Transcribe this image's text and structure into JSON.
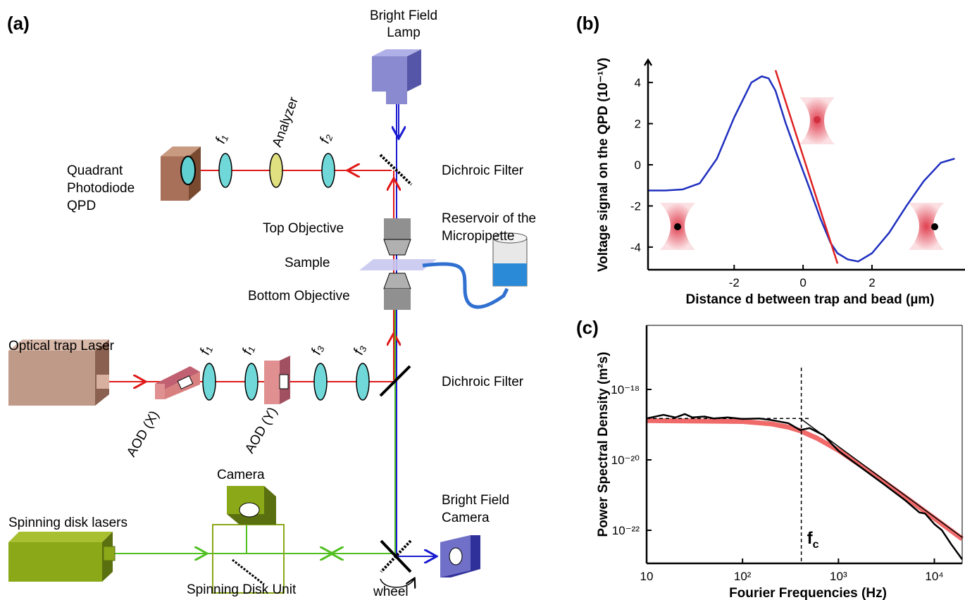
{
  "diagram": {
    "panel": "(a)",
    "lamp": [
      "Bright Field",
      "Lamp"
    ],
    "qpd": [
      "Quadrant",
      "Photodiode",
      "QPD"
    ],
    "f1_top": "f₁",
    "analyzer": "Analyzer",
    "f2": "f₂",
    "dichroic_top": "Dichroic Filter",
    "top_objective": "Top Objective",
    "reservoir": [
      "Reservoir of the",
      "Micropipette"
    ],
    "sample": "Sample",
    "bottom_objective": "Bottom Objective",
    "laser": "Optical trap Laser",
    "aod_x": "AOD (X)",
    "f1_a": "f₁",
    "f1_b": "f₁",
    "aod_y": "AOD (Y)",
    "f3_a": "f₃",
    "f3_b": "f₃",
    "dichroic_bottom": "Dichroic Filter",
    "camera": "Camera",
    "bf_camera": [
      "Bright Field",
      "Camera"
    ],
    "sd_lasers": "Spinning disk lasers",
    "sd_unit": "Spinning Disk Unit",
    "wheel": "wheel"
  },
  "chart_data": [
    {
      "type": "line",
      "label": "(b)",
      "x_label": "Distance d between trap and bead (µm)",
      "y_label": "Voltage signal on the QPD (10⁻¹V)",
      "xlim": [
        -4.5,
        4.7
      ],
      "ylim": [
        -5.1,
        5.1
      ],
      "xticks": [
        -2,
        0,
        2
      ],
      "yticks": [
        -4,
        -2,
        0,
        2,
        4
      ],
      "series": [
        {
          "color": "#1f2fbf",
          "x": [
            -4.5,
            -4,
            -3.5,
            -3,
            -2.5,
            -2,
            -1.5,
            -1.2,
            -1,
            -0.8,
            -0.5,
            -0.2,
            0,
            0.2,
            0.5,
            0.8,
            1,
            1.3,
            1.6,
            2,
            2.5,
            3,
            3.5,
            4,
            4.4
          ],
          "values": [
            -1.25,
            -1.25,
            -1.2,
            -0.9,
            0.3,
            2.3,
            4.0,
            4.3,
            4.2,
            3.6,
            2.0,
            0.6,
            -0.3,
            -1.2,
            -2.6,
            -3.8,
            -4.3,
            -4.6,
            -4.7,
            -4.3,
            -3.3,
            -2.0,
            -0.8,
            0.1,
            0.3
          ]
        },
        {
          "color": "#e02020",
          "x": [
            -0.8,
            1.0
          ],
          "values": [
            4.6,
            -4.8
          ]
        }
      ]
    },
    {
      "type": "line",
      "label": "(c)",
      "x_label": "Fourier Frequencies (Hz)",
      "y_label": "Power Spectral Density (m²s)",
      "xlog": true,
      "ylog": true,
      "xlim": [
        10,
        19500
      ],
      "ylim": [
        1.15e-23,
        6.6e-17
      ],
      "xticks": [
        10,
        {
          "value": 100,
          "label": "10²"
        },
        {
          "value": 1000,
          "label": "10³"
        },
        {
          "value": 10000,
          "label": "10⁴"
        }
      ],
      "yticks": [
        {
          "value": 1e-18,
          "label": "10⁻¹⁸"
        },
        {
          "value": 1e-20,
          "label": "10⁻²⁰"
        },
        {
          "value": 1e-22,
          "label": "10⁻²²"
        }
      ],
      "fc": 410,
      "fc_label": "f",
      "fc_sub": "c",
      "series": [
        {
          "color": "#f06a6a",
          "width": 7,
          "x": [
            10,
            100,
            200,
            300,
            400,
            600,
            1000,
            2000,
            5000,
            10000,
            19500
          ],
          "values": [
            1.3e-19,
            1.23e-19,
            1.05e-19,
            8.5e-20,
            6.7e-20,
            4.1e-20,
            1.87e-20,
            5.2e-21,
            8.7e-22,
            2.2e-22,
            5.7e-23
          ]
        },
        {
          "color": "#000000",
          "width": 2.5,
          "x": [
            10,
            15,
            20,
            25,
            30,
            40,
            50,
            70,
            100,
            150,
            200,
            300,
            400,
            500,
            700,
            1000,
            1500,
            2000,
            3000,
            5000,
            7000,
            8000,
            10000,
            12000,
            15000,
            19500
          ],
          "values": [
            1.5e-19,
            1.9e-19,
            1.6e-19,
            2e-19,
            1.6e-19,
            1.7e-19,
            1.5e-19,
            1.6e-19,
            1.45e-19,
            1.5e-19,
            1.35e-19,
            1.1e-19,
            7e-20,
            8e-20,
            5e-20,
            1.8e-20,
            8e-21,
            4.5e-21,
            2e-21,
            7e-22,
            3.2e-22,
            3e-22,
            1.5e-22,
            1e-22,
            4e-23,
            1.5e-23
          ]
        },
        {
          "color": "#000000",
          "width": 1.5,
          "dash": true,
          "x": [
            10,
            500
          ],
          "values": [
            1.5e-19,
            1.5e-19
          ]
        },
        {
          "color": "#000000",
          "width": 1.5,
          "x": [
            400,
            19500
          ],
          "values": [
            1.5e-19,
            6.3e-23
          ]
        }
      ]
    }
  ]
}
